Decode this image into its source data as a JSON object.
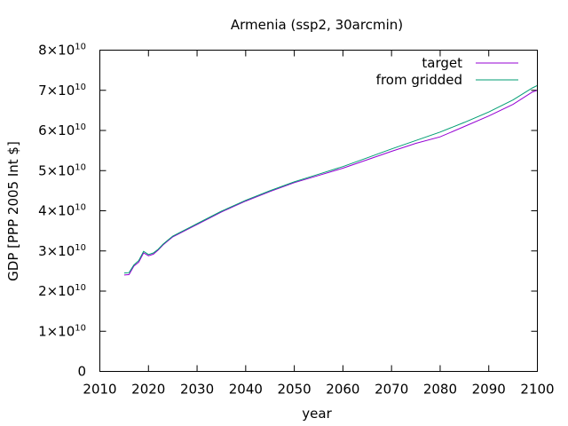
{
  "chart_data": {
    "type": "line",
    "title": "Armenia (ssp2, 30arcmin)",
    "xlabel": "year",
    "ylabel": "GDP [PPP 2005 Int $]",
    "xlim": [
      2010,
      2100
    ],
    "ylim": [
      0,
      80000000000
    ],
    "xticks": [
      "2010",
      "2020",
      "2030",
      "2040",
      "2050",
      "2060",
      "2070",
      "2080",
      "2090",
      "2100"
    ],
    "yticks": [
      {
        "value": 0,
        "mant": "0",
        "exp": ""
      },
      {
        "value": 10000000000,
        "mant": "1×10",
        "exp": "10"
      },
      {
        "value": 20000000000,
        "mant": "2×10",
        "exp": "10"
      },
      {
        "value": 30000000000,
        "mant": "3×10",
        "exp": "10"
      },
      {
        "value": 40000000000,
        "mant": "4×10",
        "exp": "10"
      },
      {
        "value": 50000000000,
        "mant": "5×10",
        "exp": "10"
      },
      {
        "value": 60000000000,
        "mant": "6×10",
        "exp": "10"
      },
      {
        "value": 70000000000,
        "mant": "7×10",
        "exp": "10"
      },
      {
        "value": 80000000000,
        "mant": "8×10",
        "exp": "10"
      }
    ],
    "grid": false,
    "legend_position": "top-right",
    "series": [
      {
        "name": "target",
        "color": "#9400d3",
        "x": [
          2015,
          2016,
          2017,
          2018,
          2019,
          2020,
          2021,
          2022,
          2023,
          2024,
          2025,
          2030,
          2035,
          2040,
          2045,
          2050,
          2055,
          2060,
          2065,
          2070,
          2075,
          2080,
          2085,
          2090,
          2095,
          2099,
          2100
        ],
        "values": [
          24000000000,
          24100000000,
          26200000000,
          27200000000,
          29500000000,
          28800000000,
          29200000000,
          30200000000,
          31500000000,
          32500000000,
          33500000000,
          36600000000,
          39700000000,
          42400000000,
          44800000000,
          47000000000,
          48800000000,
          50600000000,
          52700000000,
          54800000000,
          56800000000,
          58400000000,
          61000000000,
          63600000000,
          66500000000,
          69600000000,
          70000000000
        ]
      },
      {
        "name": "from gridded",
        "color": "#009e73",
        "x": [
          2015,
          2016,
          2017,
          2018,
          2019,
          2020,
          2021,
          2022,
          2023,
          2024,
          2025,
          2030,
          2035,
          2040,
          2045,
          2050,
          2055,
          2060,
          2065,
          2070,
          2075,
          2080,
          2085,
          2090,
          2095,
          2099,
          2100
        ],
        "values": [
          24500000000,
          24600000000,
          26500000000,
          27600000000,
          29900000000,
          29100000000,
          29500000000,
          30400000000,
          31700000000,
          32700000000,
          33700000000,
          36800000000,
          39900000000,
          42600000000,
          45000000000,
          47200000000,
          49100000000,
          51000000000,
          53200000000,
          55400000000,
          57500000000,
          59600000000,
          62000000000,
          64600000000,
          67600000000,
          70600000000,
          71200000000
        ]
      }
    ]
  }
}
